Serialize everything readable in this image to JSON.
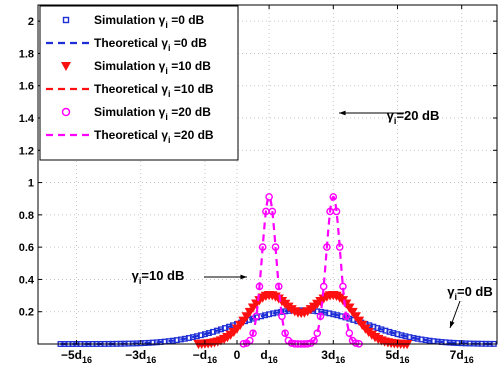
{
  "chart_data": {
    "type": "line",
    "xlabel": "",
    "ylabel": "",
    "xlim": [
      -6.2,
      8.1
    ],
    "ylim": [
      0,
      2.1
    ],
    "grid": "dotted",
    "legend_position": "top-left",
    "yticks": [
      {
        "v": 0.2,
        "label": "0.2"
      },
      {
        "v": 0.4,
        "label": "0.4"
      },
      {
        "v": 0.6,
        "label": "0.6"
      },
      {
        "v": 0.8,
        "label": "0.8"
      },
      {
        "v": 1.0,
        "label": "1"
      },
      {
        "v": 1.2,
        "label": "1.2"
      },
      {
        "v": 1.4,
        "label": "1.4"
      },
      {
        "v": 1.6,
        "label": "1.6"
      },
      {
        "v": 1.8,
        "label": "1.8"
      },
      {
        "v": 2.0,
        "label": "2"
      }
    ],
    "xticks": [
      {
        "v": -5,
        "main": "−5d",
        "sub": "16"
      },
      {
        "v": -3,
        "main": "−3d",
        "sub": "16"
      },
      {
        "v": -1,
        "main": "−d",
        "sub": "16"
      },
      {
        "v": 0,
        "main": "0",
        "sub": ""
      },
      {
        "v": 1,
        "main": "d",
        "sub": "16"
      },
      {
        "v": 3,
        "main": "3d",
        "sub": "16"
      },
      {
        "v": 5,
        "main": "5d",
        "sub": "16"
      },
      {
        "v": 7,
        "main": "7d",
        "sub": "16"
      }
    ],
    "series": [
      {
        "name": "Simulation γ_i =0 dB",
        "legend": {
          "pre": "Simulation γ",
          "sub": "i",
          "post": " =0 dB"
        },
        "kind": "scatter",
        "marker": "square",
        "color": "#1f2fd6",
        "snr_db": 0,
        "x_range": [
          -5.5,
          8.0
        ],
        "step": 0.125
      },
      {
        "name": "Theoretical γ_i =0 dB",
        "legend": {
          "pre": "Theoretical γ",
          "sub": "i",
          "post": " =0 dB"
        },
        "kind": "line",
        "dash": true,
        "color": "#1f2fd6",
        "snr_db": 0,
        "x_range": [
          -5.5,
          8.0
        ]
      },
      {
        "name": "Simulation γ_i =10 dB",
        "legend": {
          "pre": "Simulation γ",
          "sub": "i",
          "post": " =10 dB"
        },
        "kind": "scatter",
        "marker": "triangle-down",
        "color": "#ff1010",
        "snr_db": 10,
        "x_range": [
          -1.2,
          5.3
        ],
        "step": 0.1
      },
      {
        "name": "Theoretical γ_i =10 dB",
        "legend": {
          "pre": "Theoretical γ",
          "sub": "i",
          "post": " =10 dB"
        },
        "kind": "line",
        "dash": true,
        "color": "#ff1010",
        "snr_db": 10,
        "x_range": [
          -1.2,
          5.3
        ]
      },
      {
        "name": "Simulation γ_i =20 dB",
        "legend": {
          "pre": "Simulation γ",
          "sub": "i",
          "post": " =20 dB"
        },
        "kind": "scatter",
        "marker": "circle",
        "color": "#ff00ff",
        "snr_db": 20,
        "x_range": [
          0.2,
          3.8
        ],
        "step": 0.1
      },
      {
        "name": "Theoretical γ_i =20 dB",
        "legend": {
          "pre": "Theoretical γ",
          "sub": "i",
          "post": " =20 dB"
        },
        "kind": "line",
        "dash": true,
        "color": "#ff00ff",
        "snr_db": 20,
        "x_range": [
          0.2,
          3.8
        ]
      }
    ],
    "annotations": [
      {
        "pre": "γ",
        "sub": "i",
        "post": "=20 dB",
        "point": [
          3.2,
          1.5
        ]
      },
      {
        "pre": "γ",
        "sub": "i",
        "post": "=10 dB",
        "point": [
          0.2,
          0.35
        ]
      },
      {
        "pre": "γ",
        "sub": "i",
        "post": "=0 dB",
        "point": [
          6.8,
          0.05
        ]
      }
    ]
  }
}
